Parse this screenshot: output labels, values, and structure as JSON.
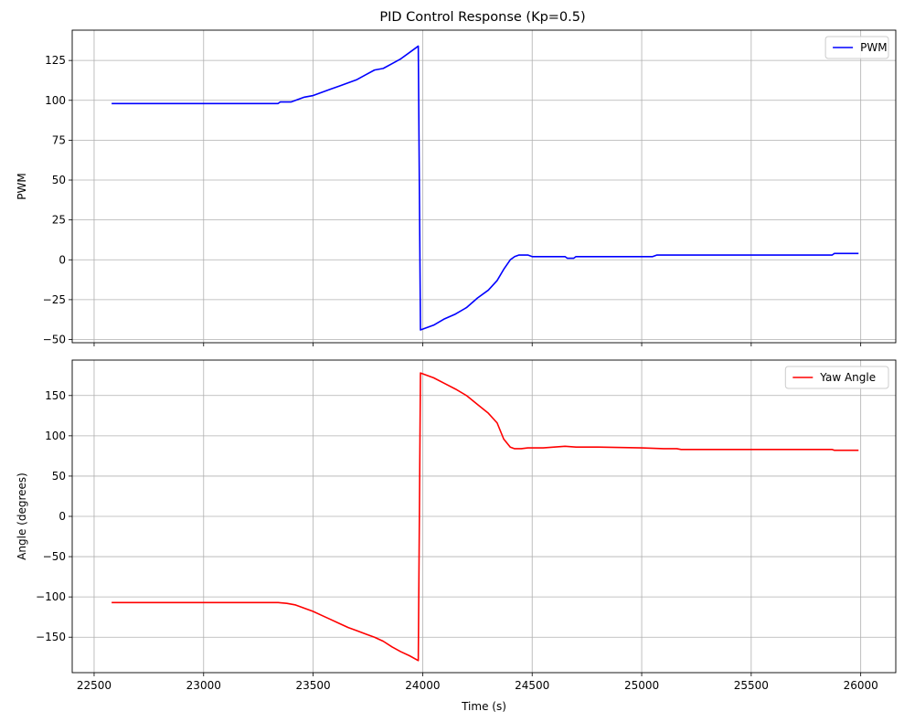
{
  "title": "PID Control Response (Kp=0.5)",
  "chart_data": [
    {
      "type": "line",
      "title": "PID Control Response (Kp=0.5)",
      "xlabel": "",
      "ylabel": "PWM",
      "xlim": [
        22400,
        26160
      ],
      "ylim": [
        -52,
        144
      ],
      "xticks": [
        22500,
        23000,
        23500,
        24000,
        24500,
        25000,
        25500,
        26000
      ],
      "yticks": [
        -50,
        -25,
        0,
        25,
        50,
        75,
        100,
        125
      ],
      "grid": true,
      "legend_position": "top-right",
      "series": [
        {
          "name": "PWM",
          "color": "#0000ff",
          "points": [
            [
              22580,
              98
            ],
            [
              23340,
              98
            ],
            [
              23350,
              99
            ],
            [
              23400,
              99
            ],
            [
              23420,
              100
            ],
            [
              23460,
              102
            ],
            [
              23500,
              103
            ],
            [
              23540,
              105
            ],
            [
              23580,
              107
            ],
            [
              23620,
              109
            ],
            [
              23660,
              111
            ],
            [
              23700,
              113
            ],
            [
              23740,
              116
            ],
            [
              23780,
              119
            ],
            [
              23820,
              120
            ],
            [
              23860,
              123
            ],
            [
              23900,
              126
            ],
            [
              23940,
              130
            ],
            [
              23980,
              134
            ],
            [
              23990,
              -44
            ],
            [
              24010,
              -43
            ],
            [
              24050,
              -41
            ],
            [
              24100,
              -37
            ],
            [
              24150,
              -34
            ],
            [
              24200,
              -30
            ],
            [
              24250,
              -24
            ],
            [
              24300,
              -19
            ],
            [
              24340,
              -13
            ],
            [
              24370,
              -6
            ],
            [
              24400,
              0
            ],
            [
              24420,
              2
            ],
            [
              24440,
              3
            ],
            [
              24480,
              3
            ],
            [
              24500,
              2
            ],
            [
              24600,
              2
            ],
            [
              24650,
              2
            ],
            [
              24660,
              1
            ],
            [
              24690,
              1
            ],
            [
              24700,
              2
            ],
            [
              24800,
              2
            ],
            [
              25050,
              2
            ],
            [
              25070,
              3
            ],
            [
              25500,
              3
            ],
            [
              25870,
              3
            ],
            [
              25880,
              4
            ],
            [
              25990,
              4
            ]
          ]
        }
      ]
    },
    {
      "type": "line",
      "xlabel": "Time (s)",
      "ylabel": "Angle (degrees)",
      "xlim": [
        22400,
        26160
      ],
      "ylim": [
        -194,
        194
      ],
      "xticks": [
        22500,
        23000,
        23500,
        24000,
        24500,
        25000,
        25500,
        26000
      ],
      "yticks": [
        -150,
        -100,
        -50,
        0,
        50,
        100,
        150
      ],
      "grid": true,
      "legend_position": "top-right",
      "series": [
        {
          "name": "Yaw Angle",
          "color": "#ff0000",
          "points": [
            [
              22580,
              -107
            ],
            [
              23340,
              -107
            ],
            [
              23380,
              -108
            ],
            [
              23420,
              -110
            ],
            [
              23460,
              -114
            ],
            [
              23500,
              -118
            ],
            [
              23540,
              -123
            ],
            [
              23580,
              -128
            ],
            [
              23620,
              -133
            ],
            [
              23660,
              -138
            ],
            [
              23700,
              -142
            ],
            [
              23740,
              -146
            ],
            [
              23780,
              -150
            ],
            [
              23820,
              -155
            ],
            [
              23860,
              -162
            ],
            [
              23900,
              -168
            ],
            [
              23940,
              -173
            ],
            [
              23980,
              -179
            ],
            [
              23990,
              178
            ],
            [
              24010,
              176
            ],
            [
              24050,
              172
            ],
            [
              24100,
              165
            ],
            [
              24150,
              158
            ],
            [
              24200,
              150
            ],
            [
              24250,
              139
            ],
            [
              24300,
              128
            ],
            [
              24340,
              116
            ],
            [
              24370,
              96
            ],
            [
              24400,
              86
            ],
            [
              24420,
              84
            ],
            [
              24450,
              84
            ],
            [
              24480,
              85
            ],
            [
              24550,
              85
            ],
            [
              24600,
              86
            ],
            [
              24650,
              87
            ],
            [
              24700,
              86
            ],
            [
              24800,
              86
            ],
            [
              25000,
              85
            ],
            [
              25100,
              84
            ],
            [
              25160,
              84
            ],
            [
              25180,
              83
            ],
            [
              25500,
              83
            ],
            [
              25870,
              83
            ],
            [
              25880,
              82
            ],
            [
              25990,
              82
            ]
          ]
        }
      ]
    }
  ]
}
